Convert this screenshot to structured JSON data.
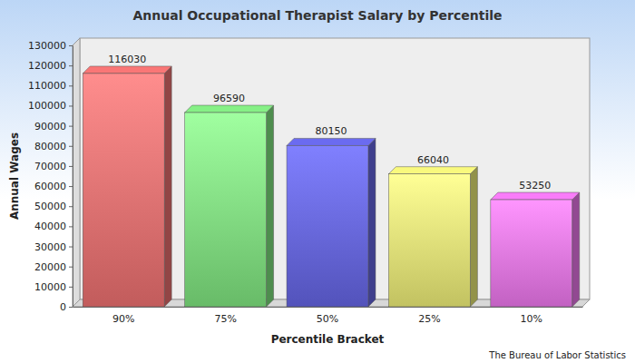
{
  "chart_data": {
    "type": "bar",
    "title": "Annual Occupational Therapist Salary by Percentile",
    "x_label": "Percentile Bracket",
    "y_label": "Annual Wages",
    "annotations": [
      "The Bureau of Labor Statistics"
    ],
    "categories": [
      "90%",
      "75%",
      "50%",
      "25%",
      "10%"
    ],
    "values": [
      116030,
      96590,
      80150,
      66040,
      53250
    ],
    "colors": [
      "#e06a6a",
      "#78d878",
      "#6060d8",
      "#e0e070",
      "#e070e0"
    ],
    "ylim": [
      0,
      130000
    ],
    "yticks": [
      0,
      10000,
      20000,
      30000,
      40000,
      50000,
      60000,
      70000,
      80000,
      90000,
      100000,
      110000,
      120000,
      130000
    ],
    "grid": false,
    "data_labels": true
  }
}
